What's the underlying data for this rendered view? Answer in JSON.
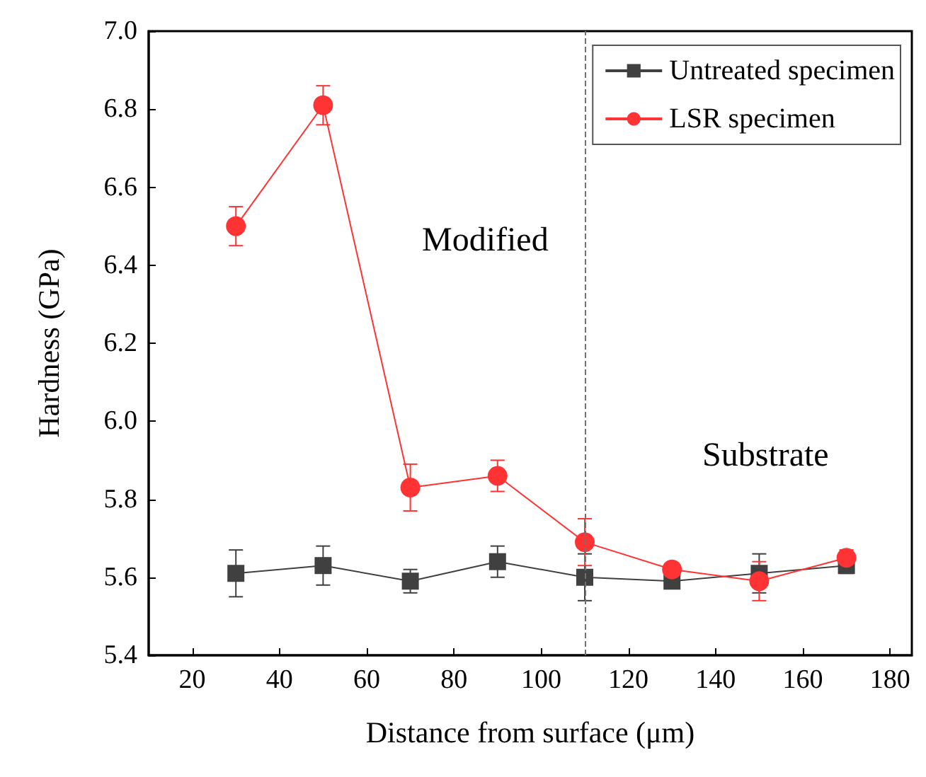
{
  "chart_data": {
    "type": "line",
    "xlabel": "Distance from surface (μm)",
    "ylabel": "Hardness (GPa)",
    "x": [
      30,
      50,
      70,
      90,
      110,
      130,
      150,
      170
    ],
    "series": [
      {
        "name": "Untreated specimen",
        "color": "#404040",
        "marker": "square",
        "values": [
          5.61,
          5.63,
          5.59,
          5.64,
          5.6,
          5.59,
          5.61,
          5.63
        ],
        "errors": [
          0.06,
          0.05,
          0.03,
          0.04,
          0.06,
          0.01,
          0.05,
          0.02
        ]
      },
      {
        "name": "LSR specimen",
        "color": "#ff3333",
        "marker": "circle",
        "values": [
          6.5,
          6.81,
          5.83,
          5.86,
          5.69,
          5.62,
          5.59,
          5.65
        ],
        "errors": [
          0.05,
          0.05,
          0.06,
          0.04,
          0.06,
          0.01,
          0.05,
          0.02
        ]
      }
    ],
    "xlim": [
      10,
      185
    ],
    "xticks": [
      20,
      40,
      60,
      80,
      100,
      120,
      140,
      160,
      180
    ],
    "ylim": [
      5.4,
      7.0
    ],
    "yticks": [
      5.4,
      5.6,
      5.8,
      {
        "value": 6,
        "label": "6.0"
      },
      6.2,
      6.4,
      6.6,
      6.8,
      {
        "value": 7,
        "label": "7.0"
      }
    ],
    "ref_lines": [
      {
        "axis": "x",
        "value": 110,
        "color": "#707070",
        "line_style": "dashed"
      }
    ],
    "annotations": [
      "Modified",
      "Substrate"
    ],
    "legend": "top right",
    "grid": false
  }
}
